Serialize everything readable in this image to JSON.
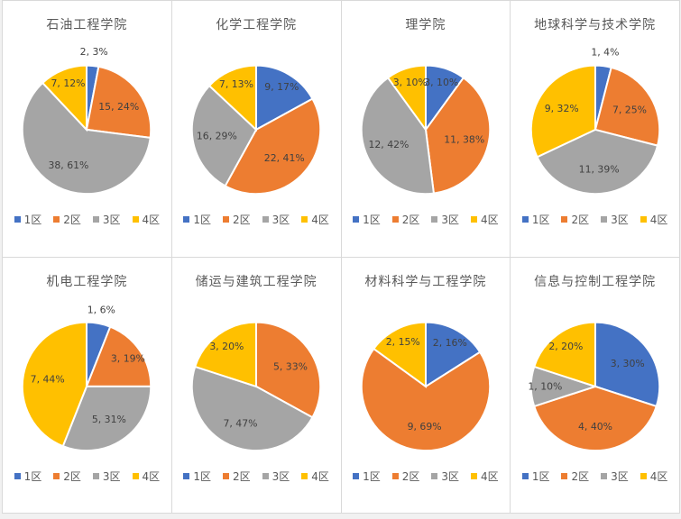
{
  "colors": {
    "series": [
      "#4472C4",
      "#ED7D31",
      "#A5A5A5",
      "#FFC000"
    ],
    "label_text": "#404040",
    "title_text": "#595959",
    "panel_border": "#d9d9d9"
  },
  "legend_labels": [
    "1区",
    "2区",
    "3区",
    "4区"
  ],
  "chart_data": [
    {
      "type": "pie",
      "title": "石油工程学院",
      "labels": [
        "1区",
        "2区",
        "3区",
        "4区"
      ],
      "values": [
        2,
        15,
        38,
        7
      ],
      "percents": [
        3,
        24,
        61,
        12
      ],
      "data_labels": [
        "2, 3%",
        "15, 24%",
        "38, 61%",
        "7, 12%"
      ],
      "legend_position": "bottom"
    },
    {
      "type": "pie",
      "title": "化学工程学院",
      "labels": [
        "1区",
        "2区",
        "3区",
        "4区"
      ],
      "values": [
        9,
        22,
        16,
        7
      ],
      "percents": [
        17,
        41,
        29,
        13
      ],
      "data_labels": [
        "9, 17%",
        "22, 41%",
        "16, 29%",
        "7, 13%"
      ],
      "legend_position": "bottom"
    },
    {
      "type": "pie",
      "title": "理学院",
      "labels": [
        "1区",
        "2区",
        "3区",
        "4区"
      ],
      "values": [
        3,
        11,
        12,
        3
      ],
      "percents": [
        10,
        38,
        42,
        10
      ],
      "data_labels": [
        "3, 10%",
        "11, 38%",
        "12, 42%",
        "3, 10%"
      ],
      "legend_position": "bottom"
    },
    {
      "type": "pie",
      "title": "地球科学与技术学院",
      "labels": [
        "1区",
        "2区",
        "3区",
        "4区"
      ],
      "values": [
        1,
        7,
        11,
        9
      ],
      "percents": [
        4,
        25,
        39,
        32
      ],
      "data_labels": [
        "1, 4%",
        "7, 25%",
        "11, 39%",
        "9, 32%"
      ],
      "legend_position": "bottom"
    },
    {
      "type": "pie",
      "title": "机电工程学院",
      "labels": [
        "1区",
        "2区",
        "3区",
        "4区"
      ],
      "values": [
        1,
        3,
        5,
        7
      ],
      "percents": [
        6,
        19,
        31,
        44
      ],
      "data_labels": [
        "1, 6%",
        "3, 19%",
        "5, 31%",
        "7, 44%"
      ],
      "legend_position": "bottom"
    },
    {
      "type": "pie",
      "title": "储运与建筑工程学院",
      "labels": [
        "1区",
        "2区",
        "3区",
        "4区"
      ],
      "values": [
        0,
        5,
        7,
        3
      ],
      "percents": [
        0,
        33,
        47,
        20
      ],
      "data_labels": [
        "",
        "5, 33%",
        "7, 47%",
        "3, 20%"
      ],
      "legend_position": "bottom"
    },
    {
      "type": "pie",
      "title": "材料科学与工程学院",
      "labels": [
        "1区",
        "2区",
        "3区",
        "4区"
      ],
      "values": [
        2,
        9,
        0,
        2
      ],
      "percents": [
        16,
        69,
        0,
        15
      ],
      "data_labels": [
        "2, 16%",
        "9, 69%",
        "",
        "2, 15%"
      ],
      "legend_position": "bottom"
    },
    {
      "type": "pie",
      "title": "信息与控制工程学院",
      "labels": [
        "1区",
        "2区",
        "3区",
        "4区"
      ],
      "values": [
        3,
        4,
        1,
        2
      ],
      "percents": [
        30,
        40,
        10,
        20
      ],
      "data_labels": [
        "3, 30%",
        "4, 40%",
        "1, 10%",
        "2, 20%"
      ],
      "legend_position": "bottom"
    }
  ]
}
